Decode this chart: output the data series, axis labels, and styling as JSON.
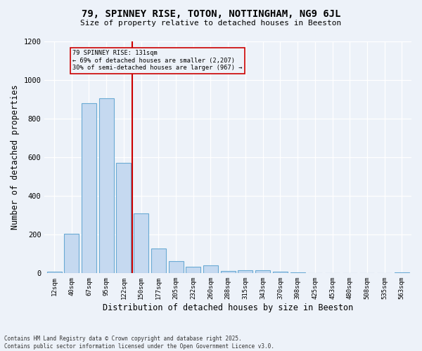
{
  "title": "79, SPINNEY RISE, TOTON, NOTTINGHAM, NG9 6JL",
  "subtitle": "Size of property relative to detached houses in Beeston",
  "xlabel": "Distribution of detached houses by size in Beeston",
  "ylabel": "Number of detached properties",
  "categories": [
    "12sqm",
    "40sqm",
    "67sqm",
    "95sqm",
    "122sqm",
    "150sqm",
    "177sqm",
    "205sqm",
    "232sqm",
    "260sqm",
    "288sqm",
    "315sqm",
    "343sqm",
    "370sqm",
    "398sqm",
    "425sqm",
    "453sqm",
    "480sqm",
    "508sqm",
    "535sqm",
    "563sqm"
  ],
  "values": [
    10,
    205,
    880,
    905,
    570,
    310,
    130,
    62,
    35,
    40,
    13,
    17,
    15,
    7,
    4,
    2,
    2,
    1,
    1,
    1,
    4
  ],
  "bar_color": "#c5d9f0",
  "bar_edgecolor": "#6aaad4",
  "property_line_x": 4.5,
  "annotation_line1": "79 SPINNEY RISE: 131sqm",
  "annotation_line2": "← 69% of detached houses are smaller (2,207)",
  "annotation_line3": "30% of semi-detached houses are larger (967) →",
  "line_color": "#cc0000",
  "annotation_box_color": "#cc0000",
  "bg_color": "#edf2f9",
  "grid_color": "#ffffff",
  "footer_line1": "Contains HM Land Registry data © Crown copyright and database right 2025.",
  "footer_line2": "Contains public sector information licensed under the Open Government Licence v3.0.",
  "ylim": [
    0,
    1200
  ],
  "yticks": [
    0,
    200,
    400,
    600,
    800,
    1000,
    1200
  ]
}
